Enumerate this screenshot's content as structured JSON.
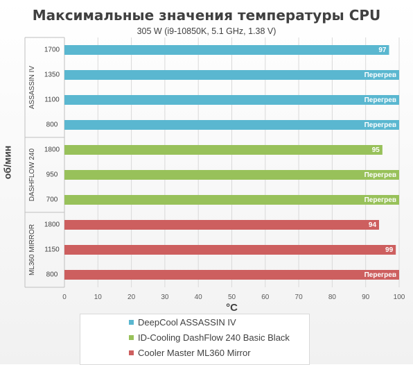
{
  "chart_data": {
    "type": "bar",
    "orientation": "horizontal",
    "title": "Максимальные значения температуры CPU",
    "subtitle": "305 W (i9-10850K, 5.1 GHz, 1.38 V)",
    "xlabel": "°C",
    "ylabel": "об/мин",
    "xlim": [
      0,
      100
    ],
    "xticks": [
      0,
      10,
      20,
      30,
      40,
      50,
      60,
      70,
      80,
      90,
      100
    ],
    "grid": true,
    "legend_position": "bottom",
    "overflow_label": "Перегрев",
    "groups": [
      {
        "label": "ASSASSIN IV",
        "series": "DeepCool ASSASSIN IV",
        "color": "#5ab7d0",
        "bars": [
          {
            "category": "1700",
            "value": 97,
            "label": "97"
          },
          {
            "category": "1350",
            "value": 100,
            "label": "Перегрев"
          },
          {
            "category": "1100",
            "value": 100,
            "label": "Перегрев"
          },
          {
            "category": "800",
            "value": 100,
            "label": "Перегрев"
          }
        ]
      },
      {
        "label": "DASHFLOW 240",
        "series": "ID-Cooling DashFlow 240 Basic Black",
        "color": "#98c15a",
        "bars": [
          {
            "category": "1800",
            "value": 95,
            "label": "95"
          },
          {
            "category": "950",
            "value": 100,
            "label": "Перегрев"
          },
          {
            "category": "700",
            "value": 100,
            "label": "Перегрев"
          }
        ]
      },
      {
        "label": "ML360 MIRROR",
        "series": "Cooler Master ML360 Mirror",
        "color": "#cd5f5f",
        "bars": [
          {
            "category": "1800",
            "value": 94,
            "label": "94"
          },
          {
            "category": "1150",
            "value": 99,
            "label": "99"
          },
          {
            "category": "800",
            "value": 100,
            "label": "Перегрев"
          }
        ]
      }
    ],
    "legend": [
      {
        "name": "DeepCool ASSASSIN IV",
        "color": "#5ab7d0"
      },
      {
        "name": "ID-Cooling DashFlow 240 Basic Black",
        "color": "#98c15a"
      },
      {
        "name": "Cooler Master ML360 Mirror",
        "color": "#cd5f5f"
      }
    ]
  }
}
